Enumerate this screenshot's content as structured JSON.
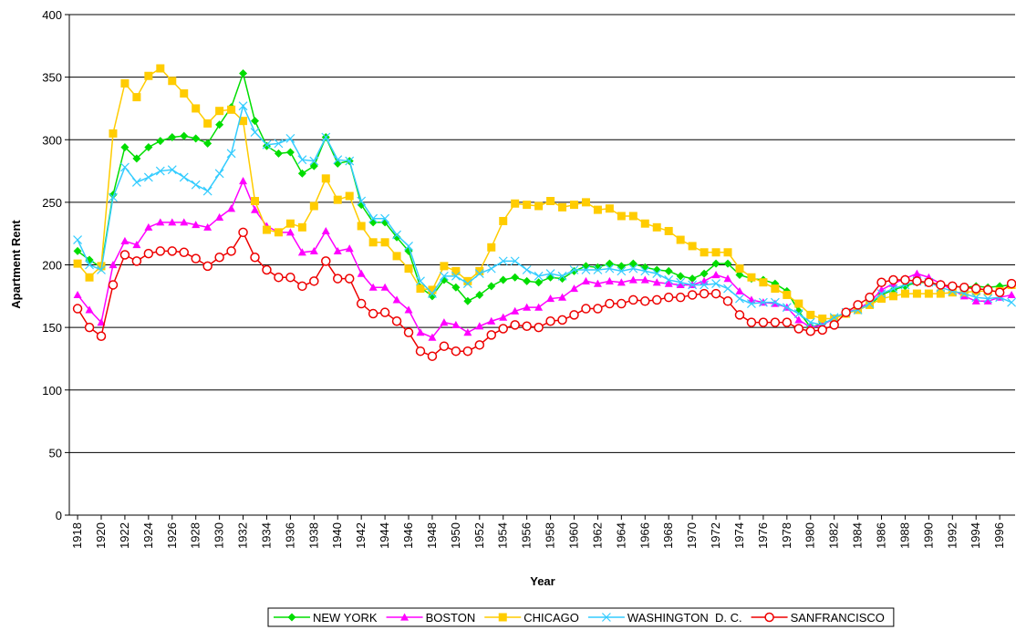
{
  "chart_data": {
    "type": "line",
    "x_label": "Year",
    "y_label": "Apartment Rent",
    "x": [
      1918,
      1919,
      1920,
      1921,
      1922,
      1923,
      1924,
      1925,
      1926,
      1927,
      1928,
      1929,
      1930,
      1931,
      1932,
      1933,
      1934,
      1935,
      1936,
      1937,
      1938,
      1939,
      1940,
      1941,
      1942,
      1943,
      1944,
      1945,
      1946,
      1947,
      1948,
      1949,
      1950,
      1951,
      1952,
      1953,
      1954,
      1955,
      1956,
      1957,
      1958,
      1959,
      1960,
      1961,
      1962,
      1963,
      1964,
      1965,
      1966,
      1967,
      1968,
      1969,
      1970,
      1971,
      1972,
      1973,
      1974,
      1975,
      1976,
      1977,
      1978,
      1979,
      1980,
      1981,
      1982,
      1983,
      1984,
      1985,
      1986,
      1987,
      1988,
      1989,
      1990,
      1991,
      1992,
      1993,
      1994,
      1995,
      1996,
      1997
    ],
    "xlim": [
      1917.3,
      1997.3
    ],
    "xticks": [
      1918,
      1920,
      1922,
      1924,
      1926,
      1928,
      1930,
      1932,
      1934,
      1936,
      1938,
      1940,
      1942,
      1944,
      1946,
      1948,
      1950,
      1952,
      1954,
      1956,
      1958,
      1960,
      1962,
      1964,
      1966,
      1968,
      1970,
      1972,
      1974,
      1976,
      1978,
      1980,
      1982,
      1984,
      1986,
      1988,
      1990,
      1992,
      1994,
      1996
    ],
    "ylim": [
      0,
      400
    ],
    "yticks": [
      0,
      50,
      100,
      150,
      200,
      250,
      300,
      350,
      400
    ],
    "grid": true,
    "legend": "bottom",
    "series": [
      {
        "name": "NEW YORK",
        "color": "#00dd00",
        "marker": "diamond",
        "values": [
          211,
          204,
          198,
          256,
          294,
          285,
          294,
          299,
          302,
          303,
          301,
          297,
          312,
          326,
          353,
          315,
          295,
          289,
          290,
          273,
          279,
          302,
          281,
          283,
          248,
          234,
          234,
          222,
          211,
          182,
          175,
          188,
          182,
          171,
          176,
          183,
          188,
          190,
          187,
          186,
          190,
          189,
          195,
          199,
          198,
          201,
          199,
          201,
          198,
          196,
          195,
          191,
          189,
          193,
          201,
          201,
          192,
          189,
          188,
          185,
          179,
          163,
          150,
          153,
          157,
          162,
          164,
          168,
          176,
          180,
          183,
          186,
          186,
          184,
          183,
          182,
          183,
          182,
          183,
          184
        ]
      },
      {
        "name": "BOSTON",
        "color": "#ff00ff",
        "marker": "triangle",
        "values": [
          176,
          164,
          154,
          200,
          219,
          216,
          230,
          234,
          234,
          234,
          232,
          230,
          238,
          245,
          267,
          244,
          231,
          226,
          226,
          210,
          211,
          227,
          211,
          213,
          193,
          182,
          182,
          172,
          164,
          146,
          142,
          154,
          152,
          146,
          151,
          155,
          158,
          163,
          166,
          166,
          173,
          174,
          181,
          187,
          185,
          187,
          186,
          188,
          188,
          186,
          185,
          184,
          184,
          187,
          192,
          189,
          179,
          172,
          170,
          169,
          166,
          156,
          150,
          152,
          157,
          162,
          165,
          170,
          180,
          185,
          189,
          193,
          190,
          185,
          180,
          175,
          171,
          171,
          174,
          176
        ]
      },
      {
        "name": "CHICAGO",
        "color": "#ffcc00",
        "marker": "square",
        "values": [
          201,
          190,
          199,
          305,
          345,
          334,
          351,
          357,
          347,
          337,
          325,
          313,
          323,
          324,
          315,
          251,
          228,
          226,
          233,
          230,
          247,
          269,
          252,
          255,
          231,
          218,
          218,
          207,
          197,
          181,
          180,
          199,
          195,
          187,
          195,
          214,
          235,
          249,
          248,
          247,
          251,
          246,
          248,
          250,
          244,
          245,
          239,
          239,
          233,
          230,
          227,
          220,
          215,
          210,
          210,
          210,
          197,
          190,
          186,
          181,
          176,
          169,
          160,
          157,
          157,
          161,
          164,
          168,
          173,
          175,
          177,
          177,
          177,
          177,
          178,
          178,
          179,
          179,
          179,
          184
        ]
      },
      {
        "name": "WASHINGTON  D. C.",
        "color": "#33ccff",
        "marker": "x",
        "values": [
          220,
          200,
          196,
          254,
          278,
          266,
          270,
          275,
          276,
          270,
          264,
          259,
          273,
          289,
          327,
          306,
          296,
          297,
          301,
          284,
          283,
          302,
          284,
          283,
          251,
          237,
          237,
          224,
          215,
          187,
          177,
          191,
          191,
          185,
          193,
          197,
          203,
          203,
          196,
          191,
          193,
          191,
          196,
          196,
          196,
          197,
          195,
          197,
          195,
          193,
          188,
          186,
          184,
          184,
          185,
          181,
          173,
          169,
          170,
          170,
          166,
          161,
          154,
          152,
          158,
          162,
          164,
          169,
          177,
          181,
          184,
          187,
          186,
          182,
          179,
          177,
          174,
          173,
          174,
          170
        ]
      },
      {
        "name": "SANFRANCISCO",
        "color": "#ee0000",
        "marker": "circle",
        "values": [
          165,
          150,
          143,
          184,
          208,
          203,
          209,
          211,
          211,
          210,
          205,
          199,
          206,
          211,
          226,
          206,
          196,
          190,
          190,
          183,
          187,
          203,
          189,
          189,
          169,
          161,
          162,
          155,
          146,
          131,
          127,
          135,
          131,
          131,
          136,
          144,
          149,
          152,
          151,
          150,
          155,
          156,
          160,
          165,
          165,
          169,
          169,
          172,
          171,
          172,
          174,
          174,
          176,
          177,
          177,
          171,
          160,
          154,
          154,
          154,
          154,
          149,
          147,
          148,
          152,
          162,
          168,
          174,
          186,
          188,
          188,
          187,
          186,
          184,
          183,
          182,
          181,
          180,
          178,
          185
        ]
      }
    ]
  }
}
